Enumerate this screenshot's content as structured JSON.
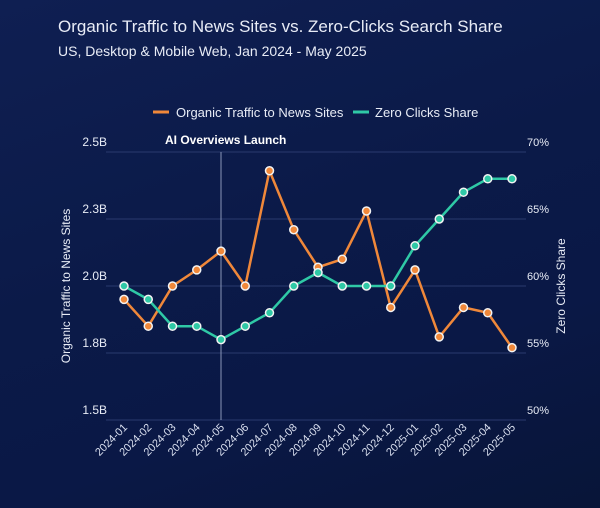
{
  "chart_data": {
    "type": "line",
    "title": "Organic Traffic to News Sites vs. Zero-Clicks Search Share",
    "subtitle": "US, Desktop & Mobile Web, Jan 2024 - May 2025",
    "categories": [
      "2024-01",
      "2024-02",
      "2024-03",
      "2024-04",
      "2024-05",
      "2024-06",
      "2024-07",
      "2024-08",
      "2024-09",
      "2024-10",
      "2024-11",
      "2024-12",
      "2025-01",
      "2025-02",
      "2025-03",
      "2025-04",
      "2025-05"
    ],
    "series": [
      {
        "name": "Organic Traffic to News Sites",
        "axis": "left",
        "color": "#f0883a",
        "values": [
          1.95,
          1.85,
          2.0,
          2.06,
          2.13,
          2.0,
          2.43,
          2.21,
          2.07,
          2.1,
          2.28,
          1.92,
          2.06,
          1.81,
          1.92,
          1.9,
          1.77
        ]
      },
      {
        "name": "Zero Clicks Share",
        "axis": "right",
        "color": "#2fc9a6",
        "values": [
          60,
          59,
          57,
          57,
          56,
          57,
          58,
          60,
          61,
          60,
          60,
          60,
          63,
          65,
          67,
          68,
          68
        ]
      }
    ],
    "ylabel": "Organic Traffic to News Sites",
    "ylabel_right": "Zero Clicks Share",
    "ylim": [
      1.5,
      2.5
    ],
    "ylim_right": [
      50,
      70
    ],
    "yticks": [
      "1.5B",
      "1.8B",
      "2.0B",
      "2.3B",
      "2.5B"
    ],
    "yticks_right": [
      "50%",
      "55%",
      "60%",
      "65%",
      "70%"
    ],
    "grid": true,
    "legend": "top-center",
    "annotation": {
      "label": "AI Overviews Launch",
      "category": "2024-05"
    }
  },
  "colors": {
    "background": "#0c1a45",
    "grid": "#2a3a6e"
  }
}
